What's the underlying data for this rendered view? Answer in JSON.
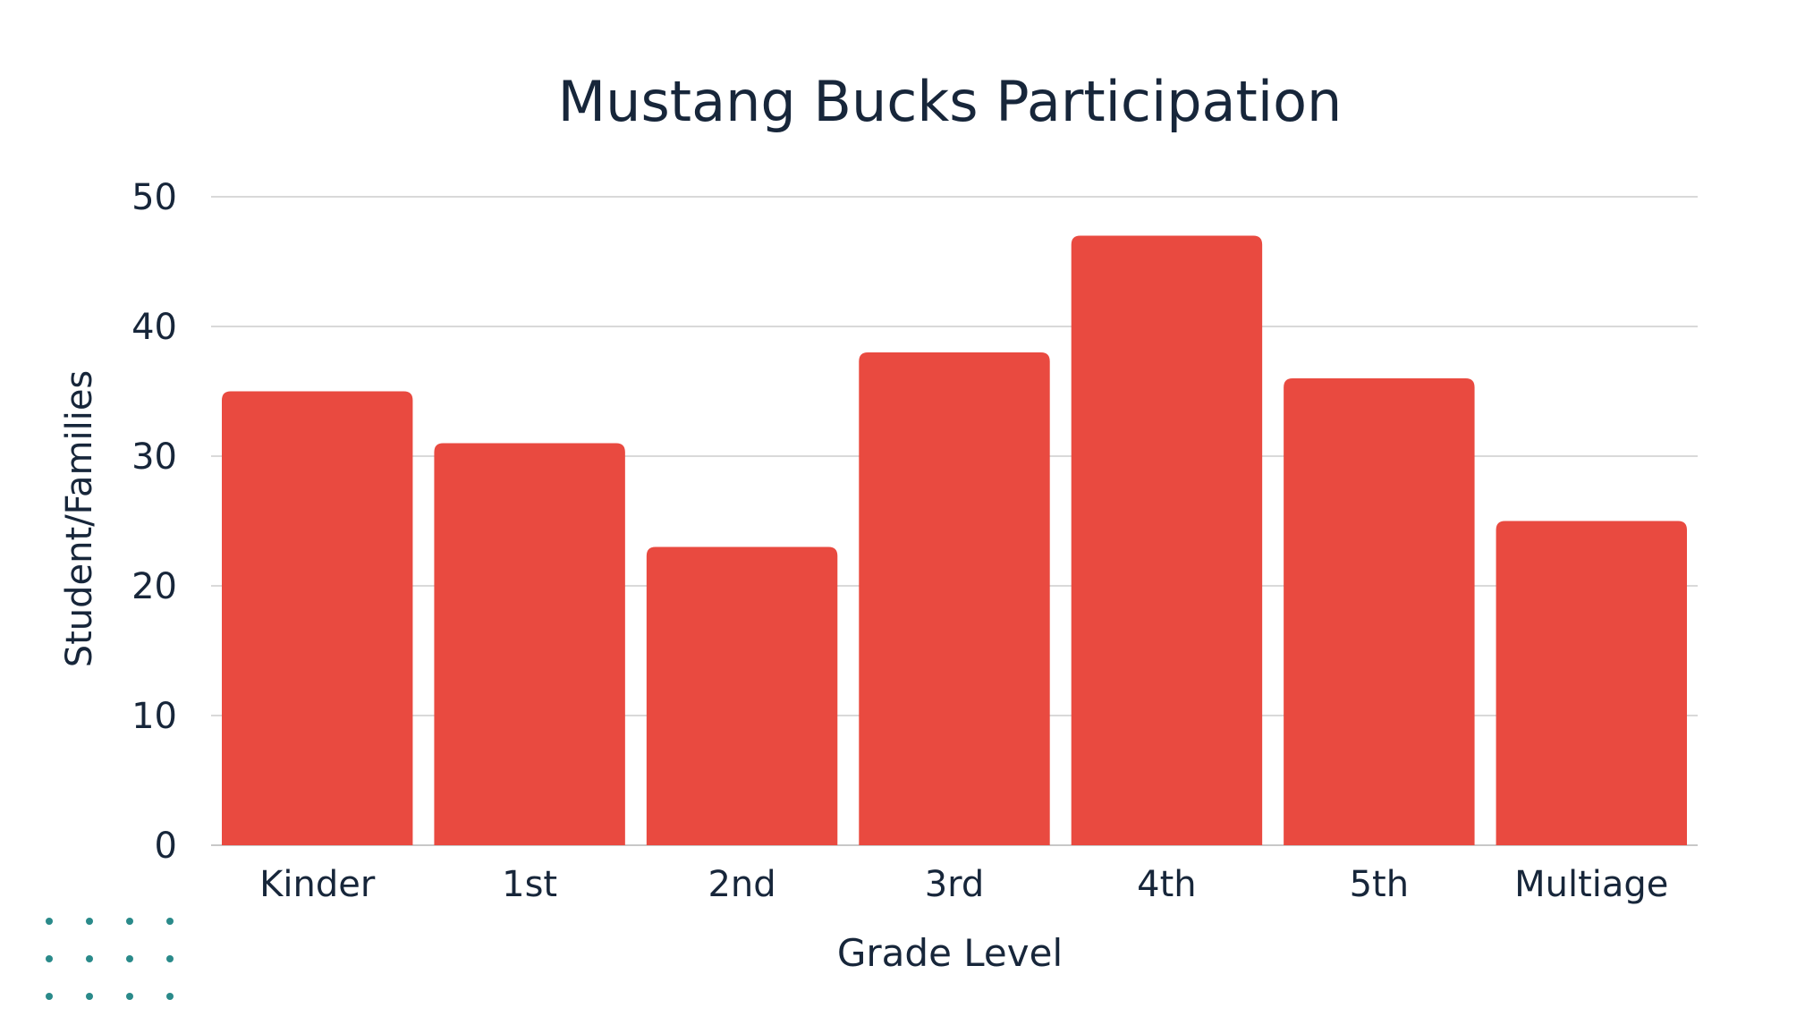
{
  "chart_data": {
    "type": "bar",
    "title": "Mustang Bucks Participation",
    "xlabel": "Grade Level",
    "ylabel": "Student/Families",
    "categories": [
      "Kinder",
      "1st",
      "2nd",
      "3rd",
      "4th",
      "5th",
      "Multiage"
    ],
    "values": [
      35,
      31,
      23,
      38,
      47,
      36,
      25
    ],
    "ylim": [
      0,
      50
    ],
    "yticks": [
      "0",
      "10",
      "20",
      "30",
      "40",
      "50"
    ],
    "grid": true,
    "legend": "none",
    "bar_color": "#e94a40",
    "grid_color": "#d9d9d9",
    "text_color": "#17263a",
    "decoration_color": "#2a8a8a"
  },
  "decorations": {
    "dot_grid_icon": "dot-grid-icon"
  }
}
